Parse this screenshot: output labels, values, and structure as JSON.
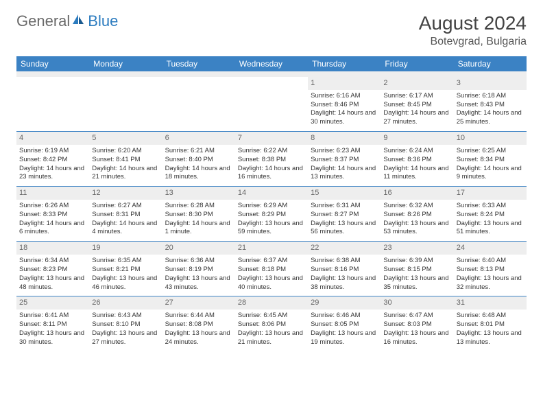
{
  "brand": {
    "part1": "General",
    "part2": "Blue"
  },
  "title": "August 2024",
  "location": "Botevgrad, Bulgaria",
  "colors": {
    "header_bg": "#3b82c4",
    "header_fg": "#ffffff",
    "daynum_bg": "#eeeeee",
    "week_divider": "#3b82c4",
    "logo_gray": "#6a6a6a",
    "logo_blue": "#2b7bbf"
  },
  "daysOfWeek": [
    "Sunday",
    "Monday",
    "Tuesday",
    "Wednesday",
    "Thursday",
    "Friday",
    "Saturday"
  ],
  "weeks": [
    [
      null,
      null,
      null,
      null,
      {
        "n": "1",
        "sr": "6:16 AM",
        "ss": "8:46 PM",
        "dl": "14 hours and 30 minutes."
      },
      {
        "n": "2",
        "sr": "6:17 AM",
        "ss": "8:45 PM",
        "dl": "14 hours and 27 minutes."
      },
      {
        "n": "3",
        "sr": "6:18 AM",
        "ss": "8:43 PM",
        "dl": "14 hours and 25 minutes."
      }
    ],
    [
      {
        "n": "4",
        "sr": "6:19 AM",
        "ss": "8:42 PM",
        "dl": "14 hours and 23 minutes."
      },
      {
        "n": "5",
        "sr": "6:20 AM",
        "ss": "8:41 PM",
        "dl": "14 hours and 21 minutes."
      },
      {
        "n": "6",
        "sr": "6:21 AM",
        "ss": "8:40 PM",
        "dl": "14 hours and 18 minutes."
      },
      {
        "n": "7",
        "sr": "6:22 AM",
        "ss": "8:38 PM",
        "dl": "14 hours and 16 minutes."
      },
      {
        "n": "8",
        "sr": "6:23 AM",
        "ss": "8:37 PM",
        "dl": "14 hours and 13 minutes."
      },
      {
        "n": "9",
        "sr": "6:24 AM",
        "ss": "8:36 PM",
        "dl": "14 hours and 11 minutes."
      },
      {
        "n": "10",
        "sr": "6:25 AM",
        "ss": "8:34 PM",
        "dl": "14 hours and 9 minutes."
      }
    ],
    [
      {
        "n": "11",
        "sr": "6:26 AM",
        "ss": "8:33 PM",
        "dl": "14 hours and 6 minutes."
      },
      {
        "n": "12",
        "sr": "6:27 AM",
        "ss": "8:31 PM",
        "dl": "14 hours and 4 minutes."
      },
      {
        "n": "13",
        "sr": "6:28 AM",
        "ss": "8:30 PM",
        "dl": "14 hours and 1 minute."
      },
      {
        "n": "14",
        "sr": "6:29 AM",
        "ss": "8:29 PM",
        "dl": "13 hours and 59 minutes."
      },
      {
        "n": "15",
        "sr": "6:31 AM",
        "ss": "8:27 PM",
        "dl": "13 hours and 56 minutes."
      },
      {
        "n": "16",
        "sr": "6:32 AM",
        "ss": "8:26 PM",
        "dl": "13 hours and 53 minutes."
      },
      {
        "n": "17",
        "sr": "6:33 AM",
        "ss": "8:24 PM",
        "dl": "13 hours and 51 minutes."
      }
    ],
    [
      {
        "n": "18",
        "sr": "6:34 AM",
        "ss": "8:23 PM",
        "dl": "13 hours and 48 minutes."
      },
      {
        "n": "19",
        "sr": "6:35 AM",
        "ss": "8:21 PM",
        "dl": "13 hours and 46 minutes."
      },
      {
        "n": "20",
        "sr": "6:36 AM",
        "ss": "8:19 PM",
        "dl": "13 hours and 43 minutes."
      },
      {
        "n": "21",
        "sr": "6:37 AM",
        "ss": "8:18 PM",
        "dl": "13 hours and 40 minutes."
      },
      {
        "n": "22",
        "sr": "6:38 AM",
        "ss": "8:16 PM",
        "dl": "13 hours and 38 minutes."
      },
      {
        "n": "23",
        "sr": "6:39 AM",
        "ss": "8:15 PM",
        "dl": "13 hours and 35 minutes."
      },
      {
        "n": "24",
        "sr": "6:40 AM",
        "ss": "8:13 PM",
        "dl": "13 hours and 32 minutes."
      }
    ],
    [
      {
        "n": "25",
        "sr": "6:41 AM",
        "ss": "8:11 PM",
        "dl": "13 hours and 30 minutes."
      },
      {
        "n": "26",
        "sr": "6:43 AM",
        "ss": "8:10 PM",
        "dl": "13 hours and 27 minutes."
      },
      {
        "n": "27",
        "sr": "6:44 AM",
        "ss": "8:08 PM",
        "dl": "13 hours and 24 minutes."
      },
      {
        "n": "28",
        "sr": "6:45 AM",
        "ss": "8:06 PM",
        "dl": "13 hours and 21 minutes."
      },
      {
        "n": "29",
        "sr": "6:46 AM",
        "ss": "8:05 PM",
        "dl": "13 hours and 19 minutes."
      },
      {
        "n": "30",
        "sr": "6:47 AM",
        "ss": "8:03 PM",
        "dl": "13 hours and 16 minutes."
      },
      {
        "n": "31",
        "sr": "6:48 AM",
        "ss": "8:01 PM",
        "dl": "13 hours and 13 minutes."
      }
    ]
  ],
  "labels": {
    "sunrise": "Sunrise: ",
    "sunset": "Sunset: ",
    "daylight": "Daylight: "
  }
}
